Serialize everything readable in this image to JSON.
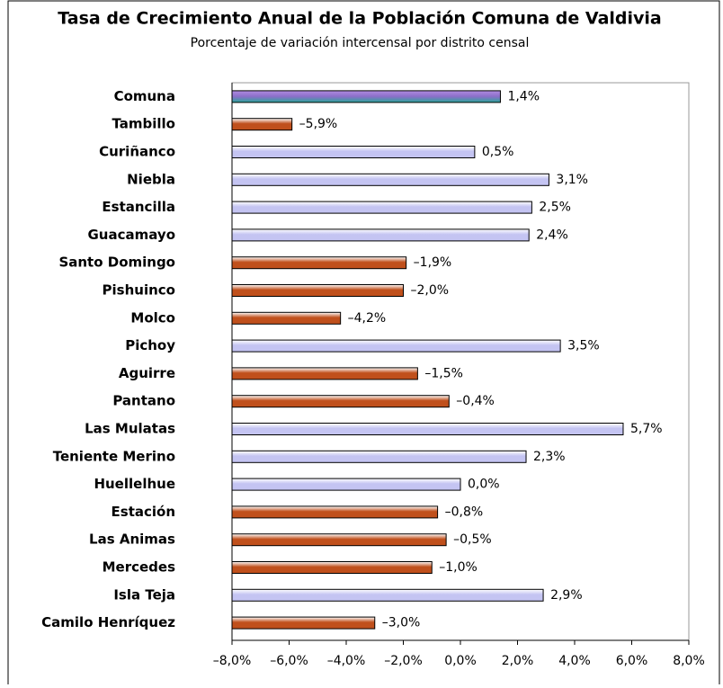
{
  "chart_data": {
    "type": "hbar",
    "title": "Tasa de Crecimiento Anual de la Población Comuna de Valdivia",
    "subtitle": "Porcentaje de variación intercensal por distrito censal",
    "categories": [
      "Comuna",
      "Tambillo",
      "Curiñanco",
      "Niebla",
      "Estancilla",
      "Guacamayo",
      "Santo Domingo",
      "Pishuinco",
      "Molco",
      "Pichoy",
      "Aguirre",
      "Pantano",
      "Las Mulatas",
      "Teniente Merino",
      "Huellelhue",
      "Estación",
      "Las Animas",
      "Mercedes",
      "Isla Teja",
      "Camilo Henríquez"
    ],
    "values": [
      1.4,
      -5.9,
      0.5,
      3.1,
      2.5,
      2.4,
      -1.9,
      -2.0,
      -4.2,
      3.5,
      -1.5,
      -0.4,
      5.7,
      2.3,
      0.0,
      -0.8,
      -0.5,
      -1.0,
      2.9,
      -3.0
    ],
    "value_labels": [
      "1,4%",
      "–5,9%",
      "0,5%",
      "3,1%",
      "2,5%",
      "2,4%",
      "–1,9%",
      "–2,0%",
      "–4,2%",
      "3,5%",
      "–1,5%",
      "–0,4%",
      "5,7%",
      "2,3%",
      "0,0%",
      "–0,8%",
      "–0,5%",
      "–1,0%",
      "2,9%",
      "–3,0%"
    ],
    "colors": [
      "#8a6fc8",
      "#c0501c",
      "#c4c4f2",
      "#c4c4f2",
      "#c4c4f2",
      "#c4c4f2",
      "#c0501c",
      "#c0501c",
      "#c0501c",
      "#c4c4f2",
      "#c0501c",
      "#c0501c",
      "#c4c4f2",
      "#c4c4f2",
      "#c4c4f2",
      "#c0501c",
      "#c0501c",
      "#c0501c",
      "#c4c4f2",
      "#c0501c"
    ],
    "xlim": [
      -8,
      8
    ],
    "xticks": [
      {
        "value": -8,
        "label": "–8,0%"
      },
      {
        "value": -6,
        "label": "–6,0%"
      },
      {
        "value": -4,
        "label": "–4,0%"
      },
      {
        "value": -2,
        "label": "–2,0%"
      },
      {
        "value": 0,
        "label": "0,0%"
      },
      {
        "value": 2,
        "label": "2,0%"
      },
      {
        "value": 4,
        "label": "4,0%"
      },
      {
        "value": 6,
        "label": "6,0%"
      },
      {
        "value": 8,
        "label": "8,0%"
      }
    ]
  }
}
